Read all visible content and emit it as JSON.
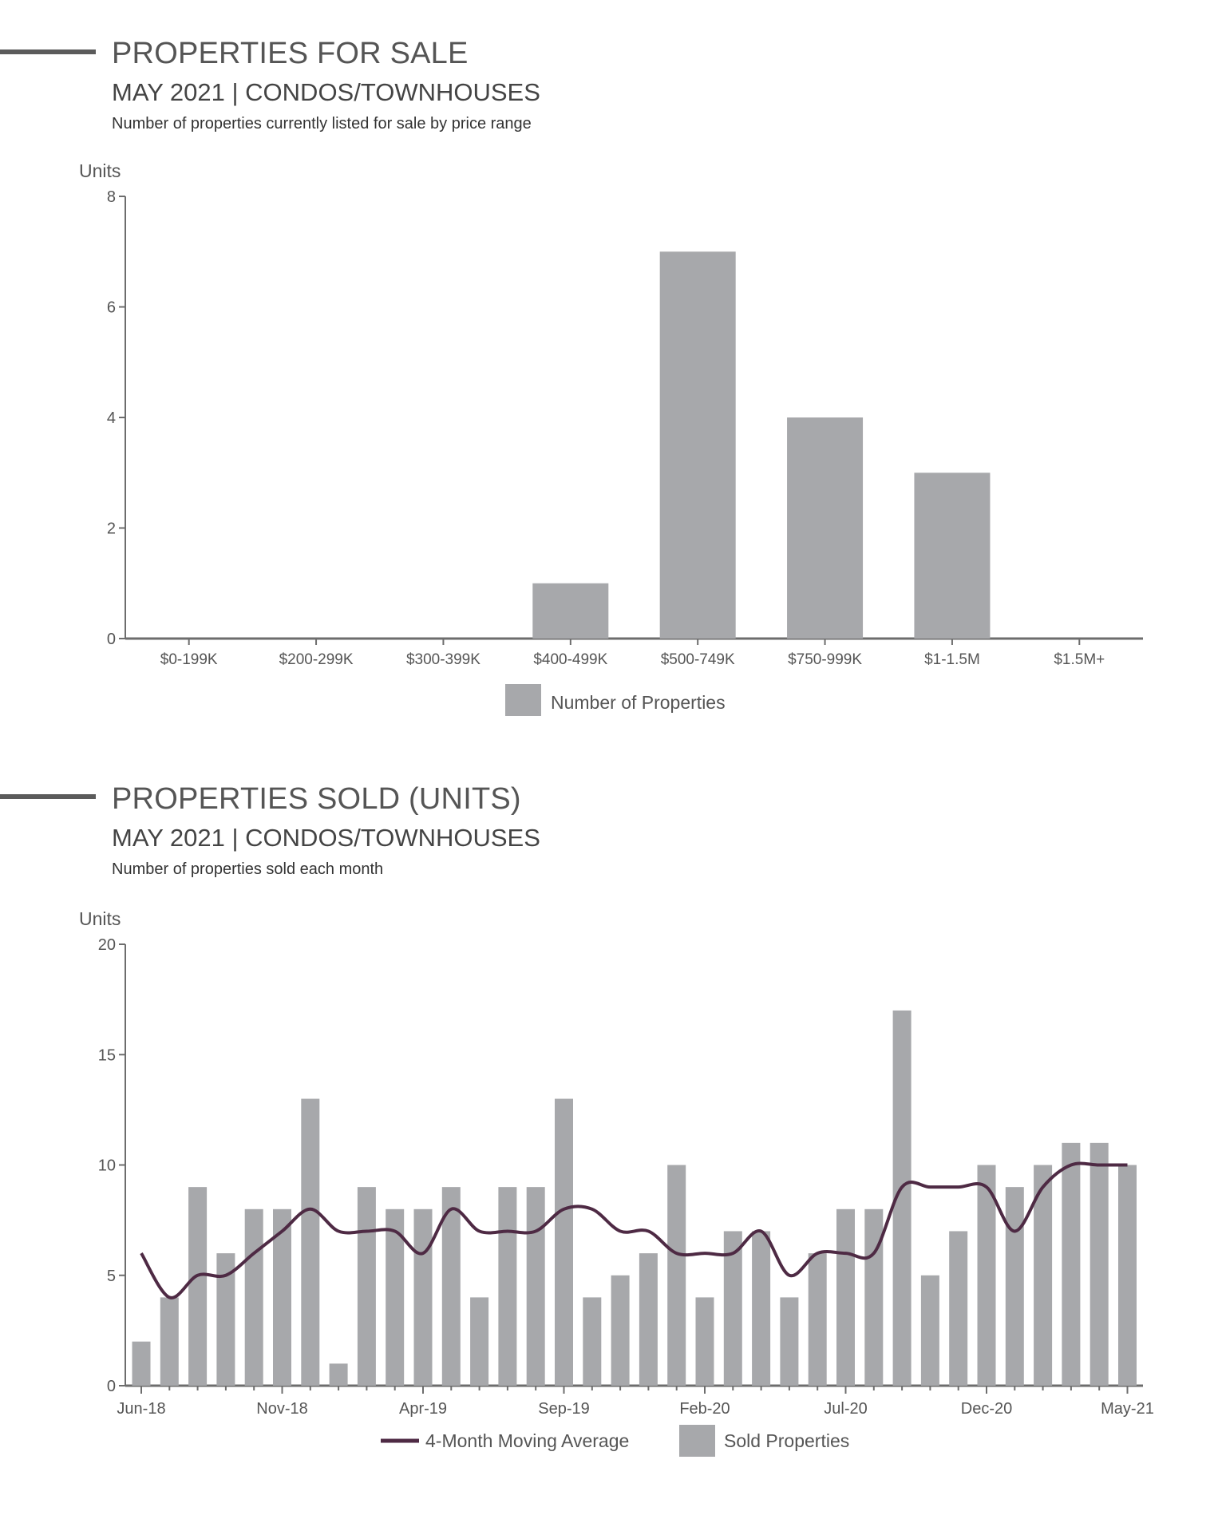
{
  "colors": {
    "bar": "#a7a8ab",
    "axis": "#6d6d6d",
    "line": "#4e2a44",
    "text": "#555555"
  },
  "chart_data": [
    {
      "type": "bar",
      "title": "PROPERTIES FOR SALE",
      "subtitle": "MAY 2021 | CONDOS/TOWNHOUSES",
      "description": "Number of properties currently listed for sale by price range",
      "ylabel": "Units",
      "ylim": [
        0,
        8
      ],
      "yticks": [
        0,
        2,
        4,
        6,
        8
      ],
      "categories": [
        "$0-199K",
        "$200-299K",
        "$300-399K",
        "$400-499K",
        "$500-749K",
        "$750-999K",
        "$1-1.5M",
        "$1.5M+"
      ],
      "series": [
        {
          "name": "Number of Properties",
          "values": [
            0,
            0,
            0,
            1,
            7,
            4,
            3,
            0
          ]
        }
      ],
      "grid": false,
      "legend": "bottom"
    },
    {
      "type": "bar",
      "title": "PROPERTIES SOLD (UNITS)",
      "subtitle": "MAY 2021 | CONDOS/TOWNHOUSES",
      "description": "Number of properties sold each month",
      "ylabel": "Units",
      "ylim": [
        0,
        20
      ],
      "yticks": [
        0,
        5,
        10,
        15,
        20
      ],
      "categories": [
        "Jun-18",
        "Jul-18",
        "Aug-18",
        "Sep-18",
        "Oct-18",
        "Nov-18",
        "Dec-18",
        "Jan-19",
        "Feb-19",
        "Mar-19",
        "Apr-19",
        "May-19",
        "Jun-19",
        "Jul-19",
        "Aug-19",
        "Sep-19",
        "Oct-19",
        "Nov-19",
        "Dec-19",
        "Jan-20",
        "Feb-20",
        "Mar-20",
        "Apr-20",
        "May-20",
        "Jun-20",
        "Jul-20",
        "Aug-20",
        "Sep-20",
        "Oct-20",
        "Nov-20",
        "Dec-20",
        "Jan-21",
        "Feb-21",
        "Mar-21",
        "Apr-21",
        "May-21"
      ],
      "xtick_labels": [
        "Jun-18",
        "Nov-18",
        "Apr-19",
        "Sep-19",
        "Feb-20",
        "Jul-20",
        "Dec-20",
        "May-21"
      ],
      "series": [
        {
          "name": "Sold Properties",
          "type": "bar",
          "values": [
            2,
            4,
            9,
            6,
            8,
            8,
            13,
            1,
            9,
            8,
            8,
            9,
            4,
            9,
            9,
            13,
            4,
            5,
            6,
            10,
            4,
            7,
            7,
            4,
            6,
            8,
            8,
            17,
            5,
            7,
            10,
            9,
            10,
            11,
            11,
            10
          ]
        },
        {
          "name": "4-Month Moving Average",
          "type": "line",
          "values": [
            6,
            4,
            5,
            5,
            6,
            7,
            8,
            7,
            7,
            7,
            6,
            8,
            7,
            7,
            7,
            8,
            8,
            7,
            7,
            6,
            6,
            6,
            7,
            5,
            6,
            6,
            6,
            9,
            9,
            9,
            9,
            7,
            9,
            10,
            10,
            10
          ]
        }
      ],
      "grid": false,
      "legend": "bottom"
    }
  ]
}
